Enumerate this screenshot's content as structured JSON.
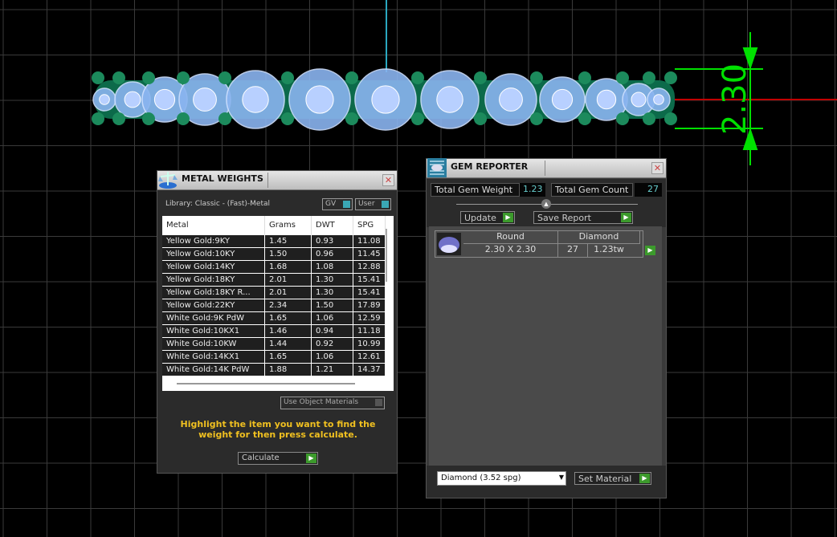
{
  "viewport": {
    "dimension_label": "2.30",
    "colors": {
      "grid": "#3a3a3a",
      "dimension": "#00e000",
      "axis_red": "#c00000",
      "axis_cyan": "#2aa8c0",
      "gem": "#8ab4f0",
      "metal": "#0c6a4a"
    }
  },
  "metal_weights": {
    "title": "METAL WEIGHTS",
    "library": "Library: Classic - (Fast)-Metal",
    "gv_label": "GV",
    "user_label": "User",
    "columns": [
      "Metal",
      "Grams",
      "DWT",
      "SPG"
    ],
    "rows": [
      [
        "Yellow Gold:9KY",
        "1.45",
        "0.93",
        "11.08"
      ],
      [
        "Yellow Gold:10KY",
        "1.50",
        "0.96",
        "11.45"
      ],
      [
        "Yellow Gold:14KY",
        "1.68",
        "1.08",
        "12.88"
      ],
      [
        "Yellow Gold:18KY",
        "2.01",
        "1.30",
        "15.41"
      ],
      [
        "Yellow Gold:18KY R...",
        "2.01",
        "1.30",
        "15.41"
      ],
      [
        "Yellow Gold:22KY",
        "2.34",
        "1.50",
        "17.89"
      ],
      [
        "White Gold:9K PdW",
        "1.65",
        "1.06",
        "12.59"
      ],
      [
        "White Gold:10KX1",
        "1.46",
        "0.94",
        "11.18"
      ],
      [
        "White Gold:10KW",
        "1.44",
        "0.92",
        "10.99"
      ],
      [
        "White Gold:14KX1",
        "1.65",
        "1.06",
        "12.61"
      ],
      [
        "White Gold:14K PdW",
        "1.88",
        "1.21",
        "14.37"
      ]
    ],
    "use_object_materials": "Use Object Materials",
    "hint": "Highlight the item you want to find the weight for then press calculate.",
    "calculate": "Calculate"
  },
  "gem_reporter": {
    "title": "GEM REPORTER",
    "total_weight_label": "Total Gem Weight",
    "total_weight": "1.23",
    "total_count_label": "Total Gem Count",
    "total_count": "27",
    "update": "Update",
    "save_report": "Save Report",
    "gem": {
      "shape": "Round",
      "material": "Diamond",
      "size": "2.30 X 2.30",
      "count": "27",
      "weight": "1.23tw"
    },
    "material_select": "Diamond      (3.52 spg)",
    "set_material": "Set Material"
  }
}
